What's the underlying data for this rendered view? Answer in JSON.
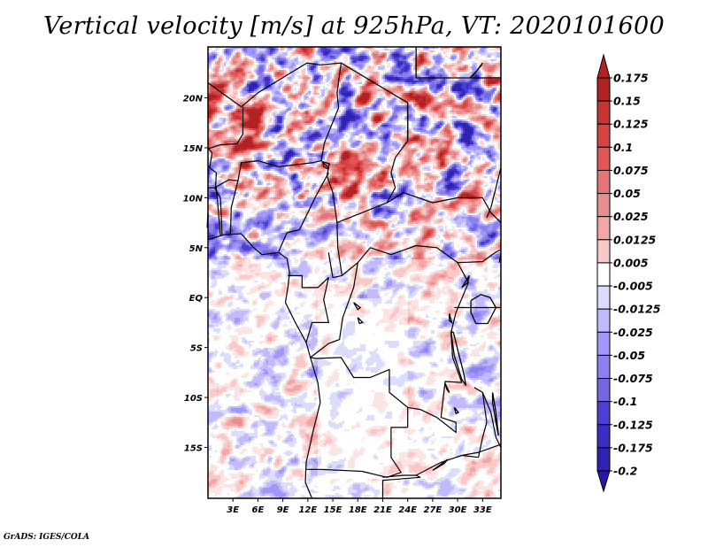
{
  "page": {
    "title": "Vertical velocity [m/s] at 925hPa, VT: 2020101600",
    "credit": "GrADS: IGES/COLA"
  },
  "chart_data": {
    "type": "heatmap",
    "title": "Vertical velocity [m/s] at 925hPa, VT: 2020101600",
    "variable": "Vertical velocity",
    "units": "m/s",
    "level": "925hPa",
    "valid_time": "2020101600",
    "xlabel": "",
    "ylabel": "",
    "x_range_deg_east": [
      0,
      35.2
    ],
    "y_range_deg_north": [
      -20.1,
      25.1
    ],
    "x_ticks": [
      {
        "value": 3,
        "label": "3E"
      },
      {
        "value": 6,
        "label": "6E"
      },
      {
        "value": 9,
        "label": "9E"
      },
      {
        "value": 12,
        "label": "12E"
      },
      {
        "value": 15,
        "label": "15E"
      },
      {
        "value": 18,
        "label": "18E"
      },
      {
        "value": 21,
        "label": "21E"
      },
      {
        "value": 24,
        "label": "24E"
      },
      {
        "value": 27,
        "label": "27E"
      },
      {
        "value": 30,
        "label": "30E"
      },
      {
        "value": 33,
        "label": "33E"
      }
    ],
    "y_ticks": [
      {
        "value": 20,
        "label": "20N"
      },
      {
        "value": 15,
        "label": "15N"
      },
      {
        "value": 10,
        "label": "10N"
      },
      {
        "value": 5,
        "label": "5N"
      },
      {
        "value": 0,
        "label": "EQ"
      },
      {
        "value": -5,
        "label": "5S"
      },
      {
        "value": -10,
        "label": "10S"
      },
      {
        "value": -15,
        "label": "15S"
      }
    ],
    "colorbar": {
      "placement": "right",
      "orientation": "vertical",
      "extend": "both",
      "levels": [
        {
          "label": "0.175",
          "value": 0.175,
          "color": "#b22222"
        },
        {
          "label": "0.15",
          "value": 0.15,
          "color": "#c83434"
        },
        {
          "label": "0.125",
          "value": 0.125,
          "color": "#d84444"
        },
        {
          "label": "0.1",
          "value": 0.1,
          "color": "#e25656"
        },
        {
          "label": "0.075",
          "value": 0.075,
          "color": "#e57474"
        },
        {
          "label": "0.05",
          "value": 0.05,
          "color": "#e68f8f"
        },
        {
          "label": "0.025",
          "value": 0.025,
          "color": "#f4a5a5"
        },
        {
          "label": "0.0125",
          "value": 0.0125,
          "color": "#fbc8c8"
        },
        {
          "label": "0.005",
          "value": 0.005,
          "color": "#fde4e4"
        },
        {
          "label": "-0.005",
          "value": -0.005,
          "color": "#ffffff"
        },
        {
          "label": "-0.0125",
          "value": -0.0125,
          "color": "#dcdcfc"
        },
        {
          "label": "-0.025",
          "value": -0.025,
          "color": "#c2bafc"
        },
        {
          "label": "-0.05",
          "value": -0.05,
          "color": "#a196fc"
        },
        {
          "label": "-0.075",
          "value": -0.075,
          "color": "#8a80ee"
        },
        {
          "label": "-0.1",
          "value": -0.1,
          "color": "#7468e0"
        },
        {
          "label": "-0.125",
          "value": -0.125,
          "color": "#4c40d4"
        },
        {
          "label": "-0.175",
          "value": -0.175,
          "color": "#3a2ec4"
        },
        {
          "label": "-0.2",
          "value": -0.2,
          "color": "#2e22b0"
        }
      ],
      "top_extend_color": "#b22222",
      "bottom_extend_color": "#2a16a8"
    },
    "field_description": "Noisy small-scale vertical velocity pattern over West/Central Africa; stronger alternating positive (red) and negative (blue) streaks over the Sahel/Sahara north of 10N; weaker mixed values over the Gulf of Guinea and Congo basin; largely near-zero (white) over Angola/Zambia interior.",
    "map_features": [
      "country boundaries",
      "coastlines",
      "lakes"
    ]
  }
}
